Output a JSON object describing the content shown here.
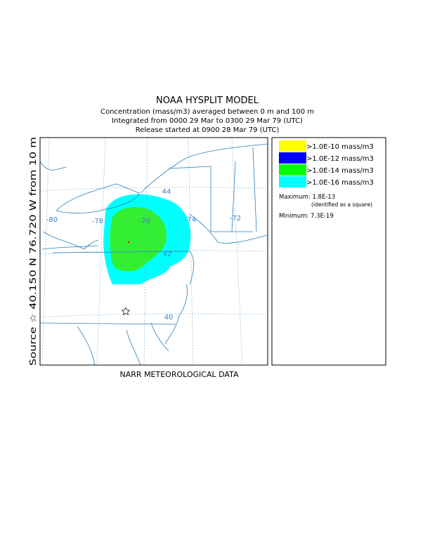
{
  "header": {
    "title": "NOAA HYSPLIT MODEL",
    "lines": [
      "Concentration  (mass/m3) averaged between     0 m and   100 m",
      "Integrated from 0000 29 Mar to 0300 29 Mar 79 (UTC)",
      "Release started at 0900 28 Mar 79 (UTC)"
    ]
  },
  "map": {
    "source_label": "Source ☆  40.150  N  76.720  W    from  10 m",
    "grid_labels": [
      "-80",
      "-78",
      "-76",
      "-74",
      "-72",
      "44",
      "42",
      "40"
    ]
  },
  "footer": "NARR METEOROLOGICAL DATA",
  "legend": {
    "entries": [
      {
        "label": ">1.0E-10 mass/m3",
        "color": "#ffff00"
      },
      {
        "label": ">1.0E-12 mass/m3",
        "color": "#0000ff"
      },
      {
        "label": ">1.0E-14 mass/m3",
        "color": "#00ff00"
      },
      {
        "label": ">1.0E-16 mass/m3",
        "color": "#00ffff"
      }
    ],
    "maximum": "Maximum: 1.8E-13",
    "maximum_note": "(identified as a square)",
    "minimum": "Minimum: 7.3E-19"
  }
}
